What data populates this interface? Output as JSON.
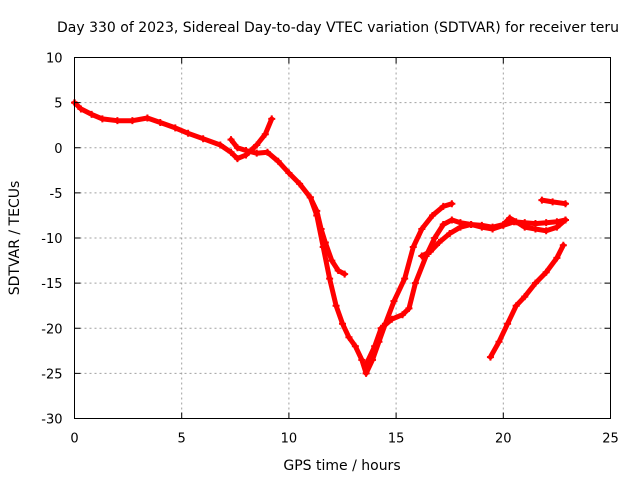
{
  "chart_data": {
    "type": "scatter",
    "title": "Day 330 of 2023, Sidereal Day-to-day VTEC variation (SDTVAR) for receiver teru",
    "xlabel": "GPS time / hours",
    "ylabel": "SDTVAR / TECUs",
    "xlim": [
      0,
      25
    ],
    "ylim": [
      -30,
      10
    ],
    "xticks": [
      0,
      5,
      10,
      15,
      20,
      25
    ],
    "yticks": [
      -30,
      -25,
      -20,
      -15,
      -10,
      -5,
      0,
      5,
      10
    ],
    "grid": true,
    "color": "#ff0000",
    "series": [
      {
        "points": [
          [
            0.0,
            5.0
          ],
          [
            0.3,
            4.3
          ],
          [
            0.8,
            3.7
          ],
          [
            1.3,
            3.2
          ],
          [
            2.0,
            3.0
          ],
          [
            2.7,
            3.0
          ],
          [
            3.4,
            3.3
          ],
          [
            4.0,
            2.8
          ],
          [
            4.7,
            2.2
          ],
          [
            5.3,
            1.6
          ],
          [
            6.0,
            1.0
          ],
          [
            6.8,
            0.3
          ],
          [
            7.3,
            -0.5
          ],
          [
            7.6,
            -1.2
          ],
          [
            8.0,
            -0.8
          ],
          [
            8.5,
            0.3
          ],
          [
            8.9,
            1.5
          ],
          [
            9.2,
            3.2
          ]
        ]
      },
      {
        "points": [
          [
            7.3,
            0.9
          ],
          [
            7.6,
            0.0
          ],
          [
            8.0,
            -0.3
          ],
          [
            8.5,
            -0.6
          ],
          [
            9.0,
            -0.5
          ],
          [
            9.5,
            -1.5
          ],
          [
            10.0,
            -2.8
          ],
          [
            10.5,
            -4.0
          ],
          [
            11.0,
            -5.5
          ],
          [
            11.3,
            -7.0
          ],
          [
            11.5,
            -9.0
          ],
          [
            11.7,
            -10.5
          ],
          [
            12.0,
            -12.5
          ],
          [
            12.3,
            -13.6
          ],
          [
            12.6,
            -14.0
          ]
        ]
      },
      {
        "points": [
          [
            11.0,
            -5.5
          ],
          [
            11.3,
            -7.5
          ],
          [
            11.6,
            -11.0
          ],
          [
            11.9,
            -14.5
          ],
          [
            12.2,
            -17.5
          ],
          [
            12.5,
            -19.5
          ],
          [
            12.8,
            -21.0
          ],
          [
            13.1,
            -22.0
          ],
          [
            13.4,
            -23.5
          ],
          [
            13.6,
            -25.0
          ],
          [
            13.9,
            -23.5
          ],
          [
            14.2,
            -21.5
          ],
          [
            14.5,
            -19.5
          ],
          [
            14.9,
            -17.0
          ],
          [
            15.4,
            -14.5
          ],
          [
            15.8,
            -11.0
          ],
          [
            16.2,
            -9.0
          ],
          [
            16.7,
            -7.5
          ],
          [
            17.2,
            -6.5
          ],
          [
            17.6,
            -6.2
          ]
        ]
      },
      {
        "points": [
          [
            13.6,
            -24.0
          ],
          [
            14.0,
            -22.0
          ],
          [
            14.3,
            -20.0
          ],
          [
            14.8,
            -19.0
          ],
          [
            15.3,
            -18.5
          ],
          [
            15.6,
            -17.8
          ],
          [
            15.9,
            -15.0
          ],
          [
            16.4,
            -12.0
          ],
          [
            16.8,
            -10.0
          ],
          [
            17.2,
            -8.5
          ],
          [
            17.6,
            -8.0
          ],
          [
            18.0,
            -8.3
          ],
          [
            18.5,
            -8.5
          ],
          [
            19.0,
            -8.6
          ],
          [
            19.5,
            -8.8
          ],
          [
            20.0,
            -8.5
          ],
          [
            20.3,
            -7.8
          ],
          [
            20.6,
            -8.2
          ],
          [
            21.0,
            -8.8
          ],
          [
            21.5,
            -9.0
          ],
          [
            22.0,
            -9.2
          ],
          [
            22.5,
            -8.8
          ],
          [
            22.9,
            -8.0
          ]
        ]
      },
      {
        "points": [
          [
            16.2,
            -12.0
          ],
          [
            16.6,
            -11.5
          ],
          [
            17.0,
            -10.5
          ],
          [
            17.5,
            -9.5
          ],
          [
            18.0,
            -8.8
          ],
          [
            18.5,
            -8.5
          ],
          [
            19.0,
            -8.8
          ],
          [
            19.5,
            -9.0
          ],
          [
            20.0,
            -8.6
          ],
          [
            20.5,
            -8.2
          ],
          [
            21.0,
            -8.3
          ],
          [
            21.5,
            -8.4
          ],
          [
            22.0,
            -8.3
          ],
          [
            22.5,
            -8.2
          ],
          [
            22.9,
            -8.0
          ]
        ]
      },
      {
        "points": [
          [
            21.8,
            -5.8
          ],
          [
            22.3,
            -6.0
          ],
          [
            22.9,
            -6.2
          ]
        ]
      },
      {
        "points": [
          [
            19.4,
            -23.2
          ],
          [
            19.8,
            -21.5
          ],
          [
            20.2,
            -19.5
          ],
          [
            20.6,
            -17.5
          ],
          [
            21.0,
            -16.5
          ],
          [
            21.5,
            -15.0
          ],
          [
            22.0,
            -13.8
          ],
          [
            22.5,
            -12.2
          ],
          [
            22.8,
            -10.8
          ]
        ]
      }
    ]
  }
}
